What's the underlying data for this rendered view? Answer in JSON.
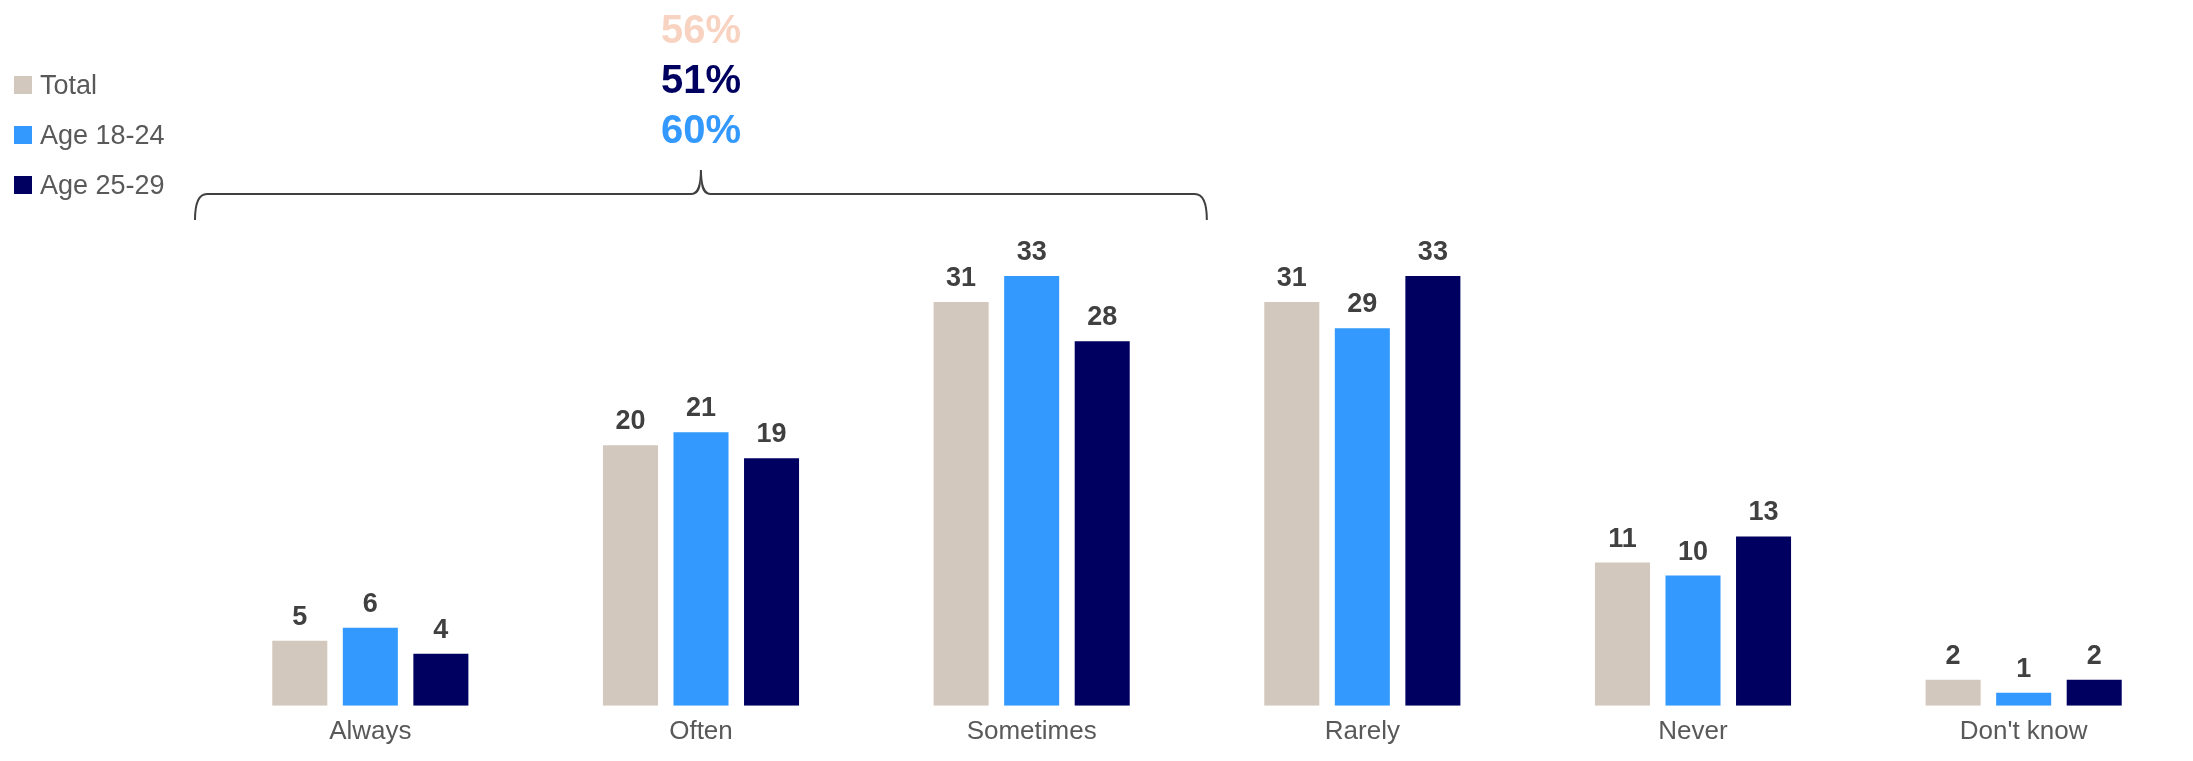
{
  "chart_data": {
    "type": "bar",
    "categories": [
      "Always",
      "Often",
      "Sometimes",
      "Rarely",
      "Never",
      "Don't know"
    ],
    "series": [
      {
        "name": "Total",
        "color": "#d3c8bd",
        "values": [
          5,
          20,
          31,
          31,
          11,
          2
        ]
      },
      {
        "name": "Age 18-24",
        "color": "#3399ff",
        "values": [
          6,
          21,
          33,
          29,
          10,
          1
        ]
      },
      {
        "name": "Age 25-29",
        "color": "#000060",
        "values": [
          4,
          19,
          28,
          33,
          13,
          2
        ]
      }
    ],
    "data_labels": true,
    "legend": "top left",
    "grid": false,
    "annotations": [
      "56%",
      "51%",
      "60%"
    ]
  }
}
